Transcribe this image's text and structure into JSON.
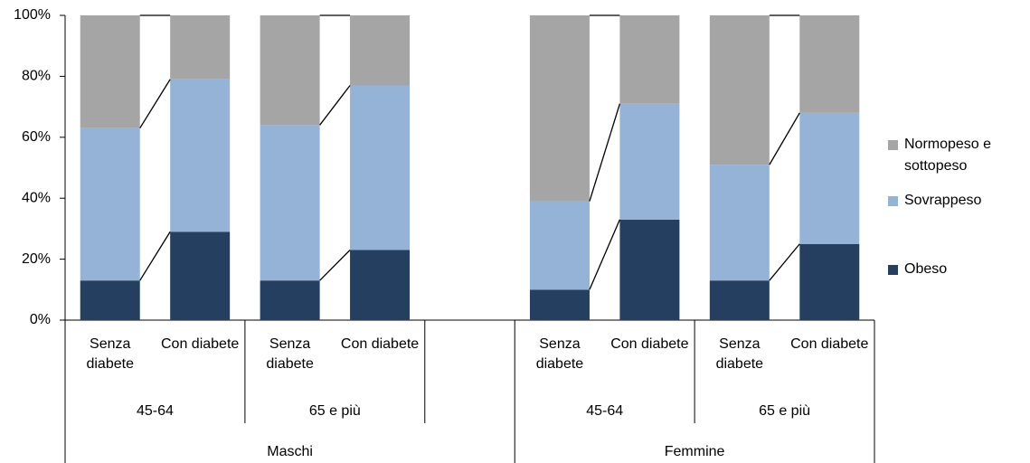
{
  "chart_data": {
    "type": "stacked_bar",
    "categories": [
      "Senza diabete",
      "Con diabete",
      "Senza diabete",
      "Con diabete",
      null,
      "Senza diabete",
      "Con diabete",
      "Senza diabete",
      "Con diabete"
    ],
    "age_groups": [
      "45-64",
      "65 e più",
      "45-64",
      "65 e più"
    ],
    "sex_groups": [
      "Maschi",
      "Femmine"
    ],
    "series": [
      {
        "name": "Obeso",
        "color": "#243f60",
        "values": [
          13,
          29,
          13,
          23,
          null,
          10,
          33,
          13,
          25
        ]
      },
      {
        "name": "Sovrappeso",
        "color": "#95b3d7",
        "values": [
          50,
          50,
          51,
          54,
          null,
          29,
          38,
          38,
          43
        ]
      },
      {
        "name": "Normopeso e sottopeso",
        "color": "#a5a5a5",
        "values": [
          37,
          21,
          36,
          23,
          null,
          61,
          29,
          49,
          32
        ]
      }
    ],
    "ylim": [
      0,
      100
    ],
    "yticks": [
      {
        "value": 0,
        "label": "0%"
      },
      {
        "value": 20,
        "label": "20%"
      },
      {
        "value": 40,
        "label": "40%"
      },
      {
        "value": 60,
        "label": "60%"
      },
      {
        "value": 80,
        "label": "80%"
      },
      {
        "value": 100,
        "label": "100%"
      }
    ],
    "legend": "right"
  }
}
